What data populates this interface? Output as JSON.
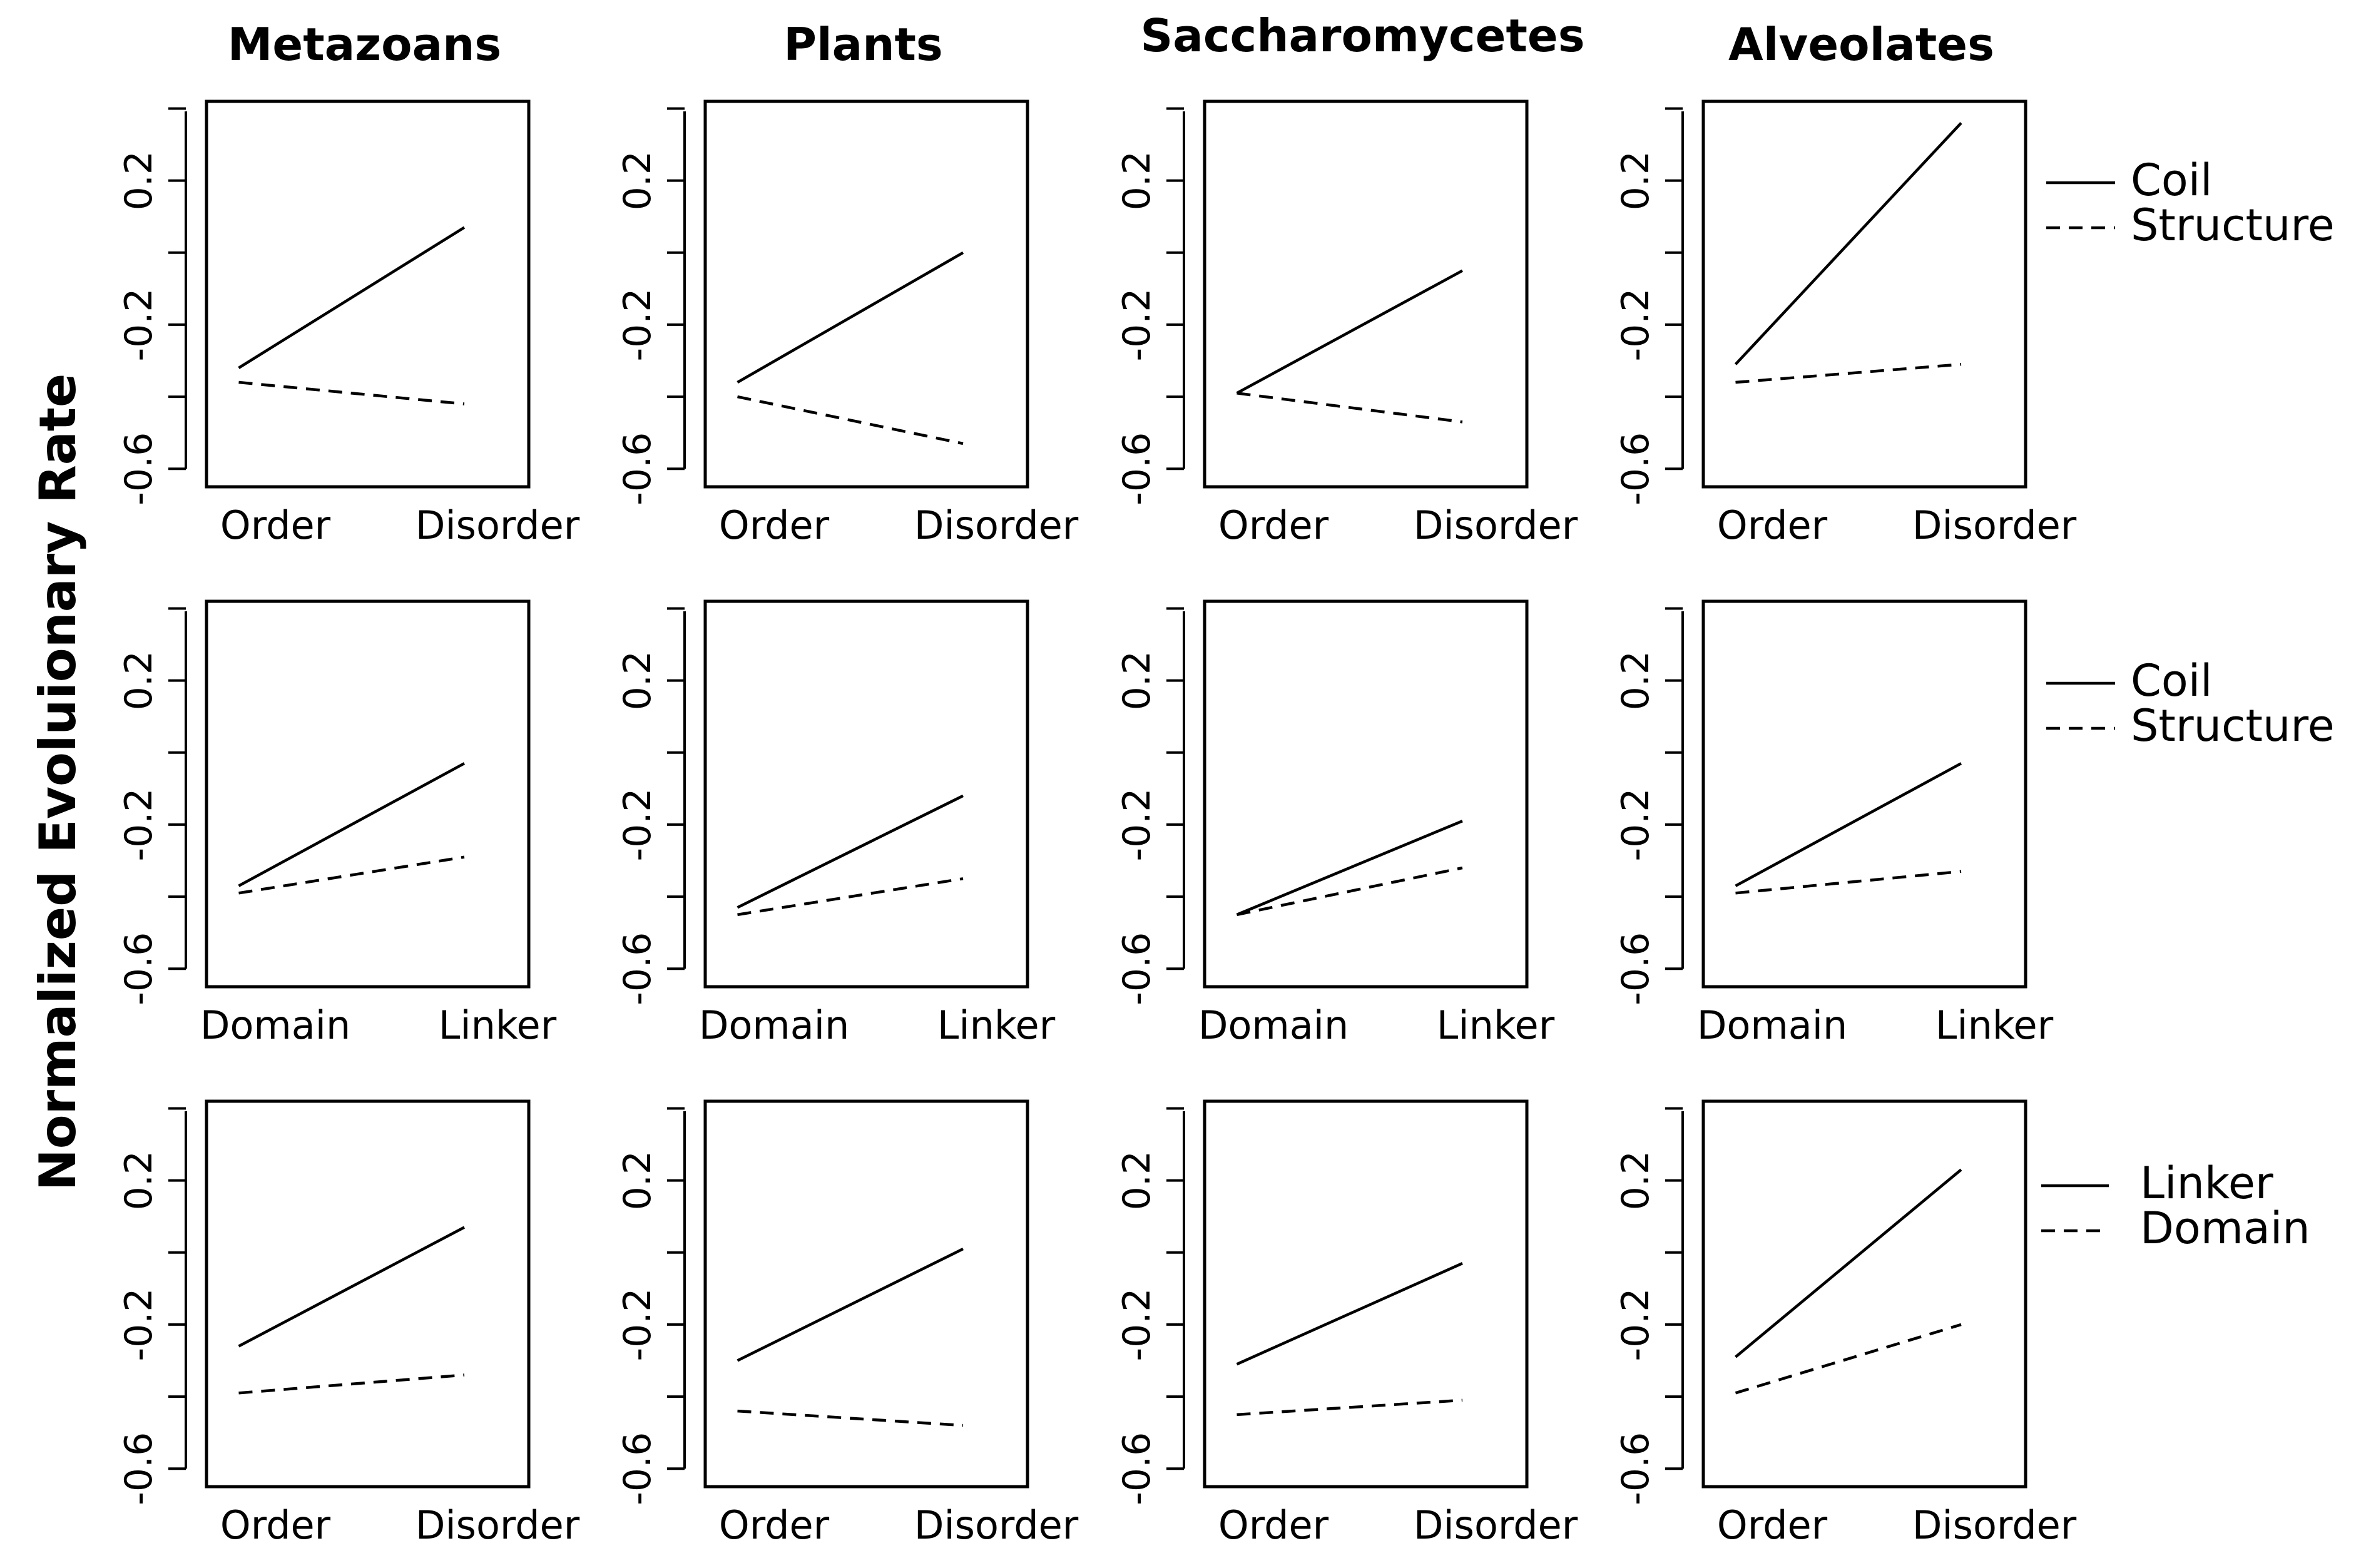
{
  "chart_data": {
    "type": "line",
    "y_axis_label": "Normalized Evoluionary Rate",
    "column_titles": [
      "Metazoans",
      "Plants",
      "Saccharomycetes",
      "Alveolates"
    ],
    "ylim": [
      -0.65,
      0.42
    ],
    "y_ticks": [
      0.2,
      -0.2,
      -0.6
    ],
    "y_tick_labels": [
      "0.2",
      "-0.2",
      "-0.6"
    ],
    "rows": [
      {
        "categories": [
          "Order",
          "Disorder"
        ],
        "legend": [
          {
            "label": "Coil",
            "style": "solid"
          },
          {
            "label": "Structure",
            "style": "dashed"
          }
        ],
        "panels": [
          {
            "series": [
              {
                "name": "Coil",
                "values": [
                  -0.32,
                  0.07
                ]
              },
              {
                "name": "Structure",
                "values": [
                  -0.36,
                  -0.42
                ]
              }
            ]
          },
          {
            "series": [
              {
                "name": "Coil",
                "values": [
                  -0.36,
                  0.0
                ]
              },
              {
                "name": "Structure",
                "values": [
                  -0.4,
                  -0.53
                ]
              }
            ]
          },
          {
            "series": [
              {
                "name": "Coil",
                "values": [
                  -0.39,
                  -0.05
                ]
              },
              {
                "name": "Structure",
                "values": [
                  -0.39,
                  -0.47
                ]
              }
            ]
          },
          {
            "series": [
              {
                "name": "Coil",
                "values": [
                  -0.31,
                  0.36
                ]
              },
              {
                "name": "Structure",
                "values": [
                  -0.36,
                  -0.31
                ]
              }
            ]
          }
        ]
      },
      {
        "categories": [
          "Domain",
          "Linker"
        ],
        "legend": [
          {
            "label": "Coil",
            "style": "solid"
          },
          {
            "label": "Structure",
            "style": "dashed"
          }
        ],
        "panels": [
          {
            "series": [
              {
                "name": "Coil",
                "values": [
                  -0.37,
                  -0.03
                ]
              },
              {
                "name": "Structure",
                "values": [
                  -0.39,
                  -0.29
                ]
              }
            ]
          },
          {
            "series": [
              {
                "name": "Coil",
                "values": [
                  -0.43,
                  -0.12
                ]
              },
              {
                "name": "Structure",
                "values": [
                  -0.45,
                  -0.35
                ]
              }
            ]
          },
          {
            "series": [
              {
                "name": "Coil",
                "values": [
                  -0.45,
                  -0.19
                ]
              },
              {
                "name": "Structure",
                "values": [
                  -0.45,
                  -0.32
                ]
              }
            ]
          },
          {
            "series": [
              {
                "name": "Coil",
                "values": [
                  -0.37,
                  -0.03
                ]
              },
              {
                "name": "Structure",
                "values": [
                  -0.39,
                  -0.33
                ]
              }
            ]
          }
        ]
      },
      {
        "categories": [
          "Order",
          "Disorder"
        ],
        "legend": [
          {
            "label": "Linker",
            "style": "solid"
          },
          {
            "label": "Domain",
            "style": "dashed"
          }
        ],
        "panels": [
          {
            "series": [
              {
                "name": "Linker",
                "values": [
                  -0.26,
                  0.07
                ]
              },
              {
                "name": "Domain",
                "values": [
                  -0.39,
                  -0.34
                ]
              }
            ]
          },
          {
            "series": [
              {
                "name": "Linker",
                "values": [
                  -0.3,
                  0.01
                ]
              },
              {
                "name": "Domain",
                "values": [
                  -0.44,
                  -0.48
                ]
              }
            ]
          },
          {
            "series": [
              {
                "name": "Linker",
                "values": [
                  -0.31,
                  -0.03
                ]
              },
              {
                "name": "Domain",
                "values": [
                  -0.45,
                  -0.41
                ]
              }
            ]
          },
          {
            "series": [
              {
                "name": "Linker",
                "values": [
                  -0.29,
                  0.23
                ]
              },
              {
                "name": "Domain",
                "values": [
                  -0.39,
                  -0.2
                ]
              }
            ]
          }
        ]
      }
    ]
  }
}
